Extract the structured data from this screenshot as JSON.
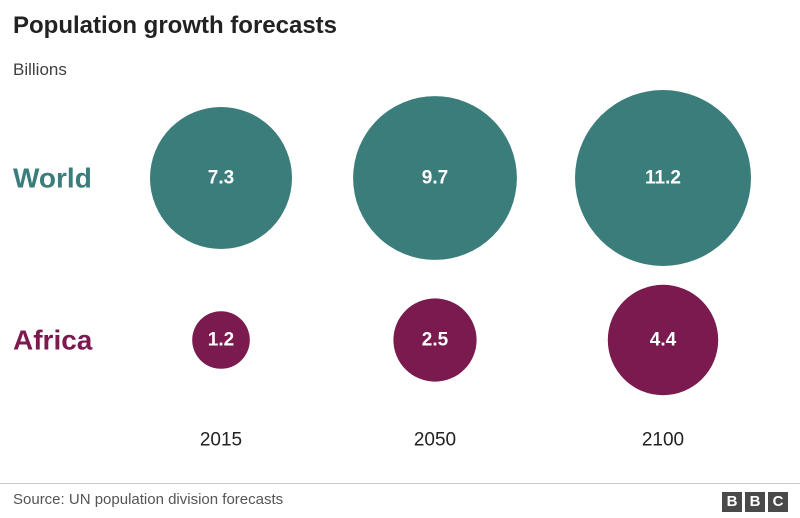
{
  "chart_data": {
    "type": "bubble",
    "title": "Population growth forecasts",
    "subtitle": "Billions",
    "categories": [
      "2015",
      "2050",
      "2100"
    ],
    "series": [
      {
        "name": "World",
        "values": [
          7.3,
          9.7,
          11.2
        ],
        "color": "#3a7d7b"
      },
      {
        "name": "Africa",
        "values": [
          1.2,
          2.5,
          4.4
        ],
        "color": "#7a1a4e"
      }
    ]
  },
  "source": "Source: UN population division forecasts",
  "logo": [
    "B",
    "B",
    "C"
  ]
}
